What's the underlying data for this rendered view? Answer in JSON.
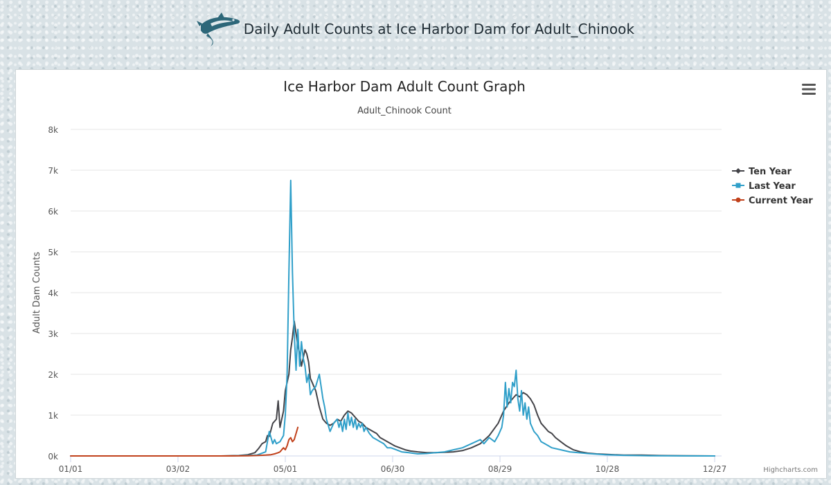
{
  "page": {
    "header_title": "Daily Adult Counts at Ice Harbor Dam for Adult_Chinook",
    "logo_icon": "salmon-fish-icon",
    "menu_icon": "hamburger-menu-icon",
    "credits": "Highcharts.com"
  },
  "chart_data": {
    "type": "line",
    "title": "Ice Harbor Dam Adult Count Graph",
    "subtitle": "Adult_Chinook Count",
    "ylabel": "Adult Dam Counts",
    "xlabel": "",
    "xlim": [
      1,
      361
    ],
    "ylim": [
      0,
      8000
    ],
    "x_tick_labels": [
      "01/01",
      "03/02",
      "05/01",
      "06/30",
      "08/29",
      "10/28",
      "12/27"
    ],
    "x_tick_days": [
      1,
      61,
      121,
      181,
      241,
      301,
      361
    ],
    "y_ticks": [
      0,
      1000,
      2000,
      3000,
      4000,
      5000,
      6000,
      7000,
      8000
    ],
    "y_tick_labels": [
      "0k",
      "1k",
      "2k",
      "3k",
      "4k",
      "5k",
      "6k",
      "7k",
      "8k"
    ],
    "grid": true,
    "legend_position": "right",
    "series": [
      {
        "name": "Ten Year",
        "color": "#434348",
        "x": [
          1,
          60,
          85,
          95,
          100,
          104,
          106,
          108,
          110,
          111,
          112,
          114,
          116,
          117,
          118,
          120,
          121,
          122,
          123,
          124,
          125,
          126,
          127,
          128,
          129,
          130,
          131,
          132,
          133,
          134,
          135,
          136,
          137,
          138,
          139,
          140,
          142,
          144,
          146,
          148,
          150,
          152,
          154,
          156,
          158,
          160,
          162,
          164,
          166,
          168,
          170,
          172,
          174,
          176,
          178,
          180,
          182,
          185,
          188,
          191,
          195,
          200,
          205,
          210,
          215,
          220,
          225,
          230,
          235,
          240,
          243,
          246,
          248,
          250,
          252,
          254,
          256,
          258,
          260,
          262,
          264,
          266,
          268,
          270,
          272,
          275,
          278,
          282,
          286,
          290,
          295,
          300,
          305,
          310,
          320,
          330,
          345,
          361
        ],
        "values": [
          0,
          0,
          0,
          10,
          30,
          80,
          180,
          300,
          350,
          500,
          480,
          800,
          900,
          1350,
          700,
          1100,
          1600,
          1800,
          2000,
          2600,
          2900,
          3300,
          3000,
          2700,
          2500,
          2200,
          2400,
          2600,
          2500,
          2300,
          1900,
          1800,
          1700,
          1600,
          1400,
          1200,
          900,
          800,
          750,
          800,
          900,
          850,
          1000,
          1100,
          1050,
          950,
          850,
          800,
          700,
          650,
          600,
          550,
          450,
          400,
          350,
          300,
          250,
          200,
          150,
          120,
          100,
          80,
          80,
          90,
          100,
          130,
          200,
          300,
          500,
          800,
          1100,
          1300,
          1400,
          1500,
          1450,
          1550,
          1500,
          1400,
          1250,
          1000,
          800,
          700,
          600,
          550,
          450,
          350,
          250,
          150,
          100,
          70,
          50,
          40,
          30,
          20,
          20,
          10,
          5,
          0
        ]
      },
      {
        "name": "Last Year",
        "color": "#2f9fc9",
        "x": [
          1,
          90,
          105,
          110,
          112,
          114,
          115,
          116,
          118,
          120,
          121,
          122,
          123,
          124,
          125,
          126,
          127,
          128,
          129,
          130,
          131,
          132,
          133,
          134,
          135,
          136,
          138,
          140,
          141,
          142,
          143,
          144,
          146,
          148,
          150,
          151,
          152,
          153,
          154,
          155,
          156,
          157,
          158,
          159,
          160,
          161,
          162,
          163,
          164,
          165,
          166,
          168,
          170,
          172,
          174,
          176,
          178,
          180,
          183,
          186,
          190,
          195,
          200,
          205,
          210,
          215,
          220,
          225,
          230,
          232,
          235,
          238,
          240,
          242,
          243,
          244,
          245,
          246,
          247,
          248,
          249,
          250,
          251,
          252,
          253,
          254,
          255,
          256,
          257,
          258,
          260,
          262,
          264,
          266,
          268,
          270,
          275,
          280,
          290,
          300,
          310,
          325,
          361
        ],
        "values": [
          0,
          0,
          20,
          100,
          600,
          300,
          400,
          300,
          350,
          500,
          1000,
          2000,
          4500,
          6750,
          4500,
          3000,
          2100,
          3100,
          2200,
          2800,
          2400,
          2200,
          1800,
          2000,
          1500,
          1600,
          1700,
          2000,
          1700,
          1400,
          1200,
          900,
          600,
          800,
          900,
          700,
          850,
          600,
          900,
          650,
          1050,
          750,
          950,
          700,
          900,
          650,
          800,
          700,
          800,
          600,
          700,
          550,
          450,
          400,
          350,
          300,
          200,
          200,
          150,
          100,
          80,
          50,
          60,
          80,
          100,
          150,
          200,
          300,
          400,
          300,
          450,
          350,
          500,
          700,
          1000,
          1800,
          1200,
          1650,
          1300,
          1800,
          1700,
          2100,
          1400,
          1100,
          1600,
          1000,
          1300,
          900,
          1200,
          800,
          600,
          500,
          350,
          300,
          250,
          200,
          150,
          100,
          60,
          30,
          15,
          5,
          0
        ]
      },
      {
        "name": "Current Year",
        "color": "#c1401a",
        "x": [
          1,
          90,
          100,
          105,
          110,
          113,
          115,
          117,
          118,
          119,
          120,
          121,
          122,
          123,
          124,
          125,
          126,
          127,
          128
        ],
        "values": [
          0,
          0,
          5,
          10,
          20,
          30,
          50,
          80,
          100,
          150,
          200,
          150,
          250,
          400,
          450,
          350,
          400,
          550,
          700
        ]
      }
    ]
  }
}
